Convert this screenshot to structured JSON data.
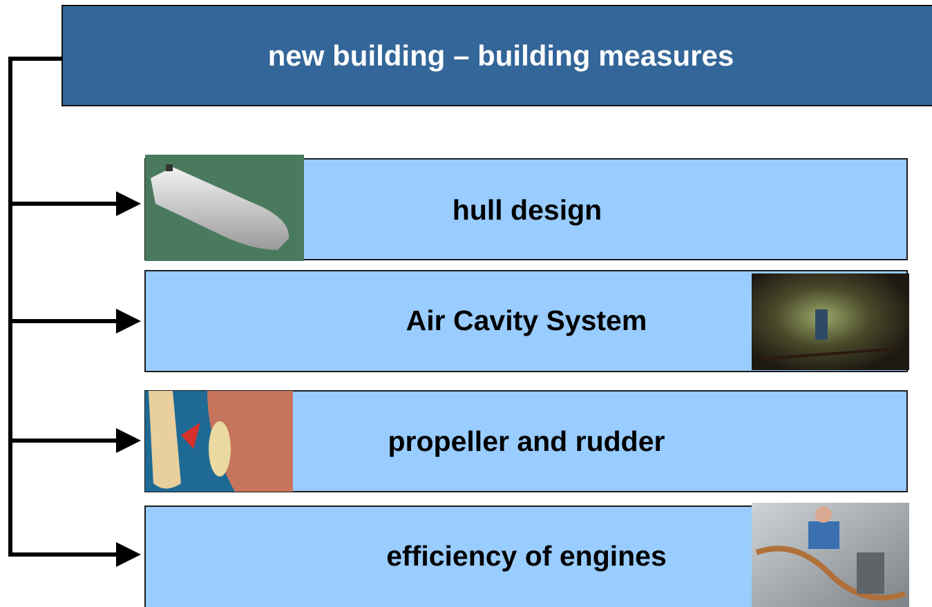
{
  "header": {
    "title": "new building – building measures"
  },
  "items": [
    {
      "label": "hull design"
    },
    {
      "label": "Air Cavity System"
    },
    {
      "label": "propeller and rudder"
    },
    {
      "label": "efficiency of engines"
    }
  ]
}
